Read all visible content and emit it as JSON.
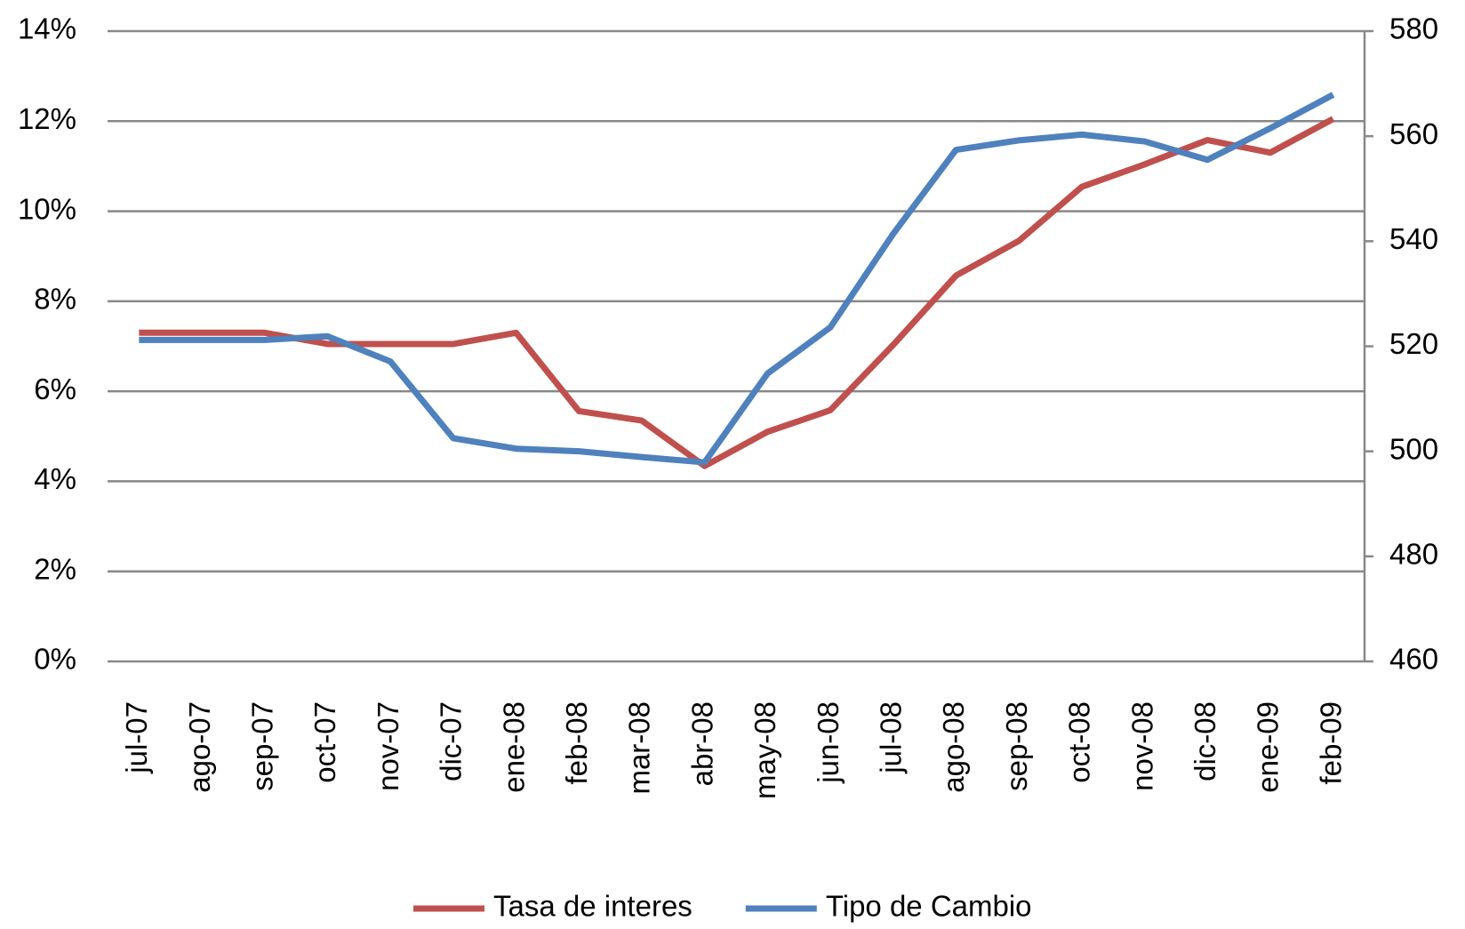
{
  "chart_data": {
    "type": "line",
    "categories": [
      "jul-07",
      "ago-07",
      "sep-07",
      "oct-07",
      "nov-07",
      "dic-07",
      "ene-08",
      "feb-08",
      "mar-08",
      "abr-08",
      "may-08",
      "jun-08",
      "jul-08",
      "ago-08",
      "sep-08",
      "oct-08",
      "nov-08",
      "dic-08",
      "ene-09",
      "feb-09"
    ],
    "series": [
      {
        "name": "Tasa de interes",
        "color": "#c0504d",
        "values": [
          7.3,
          7.3,
          7.3,
          7.05,
          7.05,
          7.05,
          7.3,
          5.56,
          5.35,
          4.34,
          5.1,
          5.58,
          7.03,
          8.57,
          9.34,
          10.54,
          11.04,
          11.58,
          11.3,
          12.05
        ]
      },
      {
        "name": "Tipo de Cambio",
        "color": "#4f81bd",
        "axis": "y2",
        "values": [
          521.2,
          521.2,
          521.2,
          521.9,
          517.1,
          502.5,
          500.5,
          500,
          498.9,
          497.9,
          514.8,
          523.6,
          541.4,
          557.4,
          559.2,
          560.3,
          559,
          555.5,
          561.5,
          567.9
        ]
      }
    ],
    "ylim": [
      0,
      14
    ],
    "yticks": [
      {
        "value": 0,
        "label": "0%"
      },
      {
        "value": 2,
        "label": "2%"
      },
      {
        "value": 4,
        "label": "4%"
      },
      {
        "value": 6,
        "label": "6%"
      },
      {
        "value": 8,
        "label": "8%"
      },
      {
        "value": 10,
        "label": "10%"
      },
      {
        "value": 12,
        "label": "12%"
      },
      {
        "value": 14,
        "label": "14%"
      }
    ],
    "y2lim": [
      460,
      580
    ],
    "y2ticks": [
      460,
      480,
      500,
      520,
      540,
      560,
      580
    ],
    "grid": true,
    "legend": "bottom"
  }
}
